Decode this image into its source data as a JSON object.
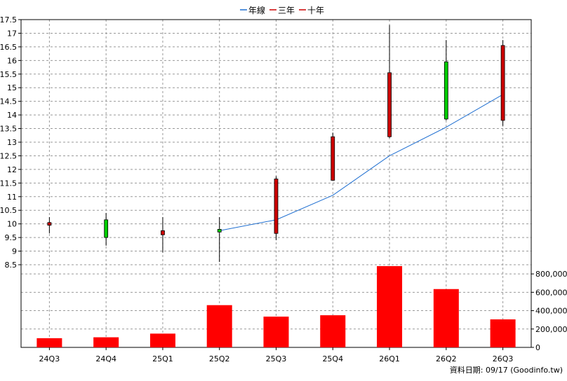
{
  "chart_data": {
    "type": "candlestick",
    "legend": [
      {
        "label": "年線",
        "color": "#1f6fd1",
        "style": "line"
      },
      {
        "label": "三年",
        "color": "#cc0000",
        "style": "line"
      },
      {
        "label": "十年",
        "color": "#cc0000",
        "style": "line"
      }
    ],
    "categories": [
      "24Q3",
      "24Q4",
      "25Q1",
      "25Q2",
      "25Q3",
      "25Q4",
      "26Q1",
      "26Q2",
      "26Q3"
    ],
    "price_axis": {
      "ylim": [
        8.5,
        17.5
      ],
      "ticks": [
        "8.5",
        "9",
        "9.5",
        "10",
        "10.5",
        "11",
        "11.5",
        "12",
        "12.5",
        "13",
        "13.5",
        "14",
        "14.5",
        "15",
        "15.5",
        "16",
        "16.5",
        "17",
        "17.5"
      ]
    },
    "candles": [
      {
        "open": 10.05,
        "close": 9.95,
        "high": 10.25,
        "low": 9.65,
        "color": "red"
      },
      {
        "open": 9.5,
        "close": 10.15,
        "high": 10.4,
        "low": 9.2,
        "color": "green"
      },
      {
        "open": 9.75,
        "close": 9.6,
        "high": 10.25,
        "low": 8.95,
        "color": "red"
      },
      {
        "open": 9.7,
        "close": 9.8,
        "high": 10.25,
        "low": 8.6,
        "color": "green"
      },
      {
        "open": 11.65,
        "close": 9.65,
        "high": 11.75,
        "low": 9.4,
        "color": "red"
      },
      {
        "open": 13.2,
        "close": 11.6,
        "high": 13.35,
        "low": 11.6,
        "color": "red"
      },
      {
        "open": 15.55,
        "close": 13.2,
        "high": 17.3,
        "low": 13.15,
        "color": "red"
      },
      {
        "open": 13.85,
        "close": 15.95,
        "high": 16.75,
        "low": 13.8,
        "color": "green"
      },
      {
        "open": 16.55,
        "close": 13.8,
        "high": 16.75,
        "low": 13.6,
        "color": "red"
      }
    ],
    "annual_line": {
      "name": "年線",
      "start_index": 3,
      "values": [
        9.75,
        10.15,
        11.05,
        12.5,
        13.55,
        14.75
      ]
    },
    "volume_axis": {
      "ylim": [
        0,
        900000
      ],
      "ticks": [
        "0",
        "200,000",
        "400,000",
        "600,000",
        "800,000"
      ]
    },
    "volumes": [
      100000,
      110000,
      150000,
      460000,
      335000,
      350000,
      885000,
      635000,
      305000
    ],
    "grid": true,
    "source_note": "資料日期: 09/17  (Goodinfo.tw)"
  }
}
